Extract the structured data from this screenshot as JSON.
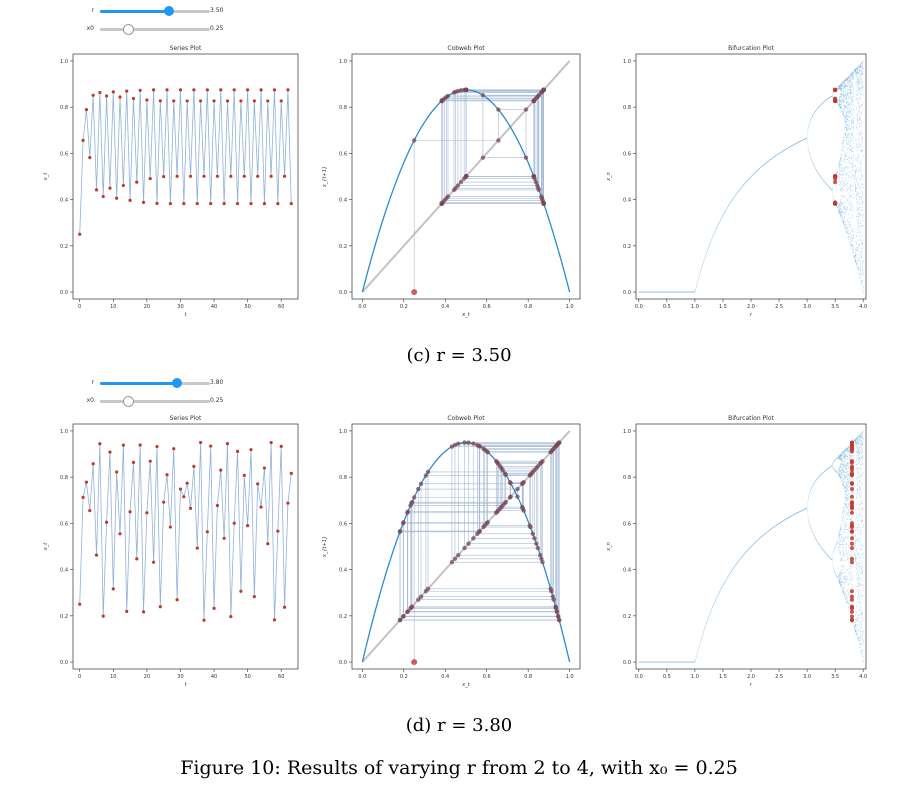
{
  "panels": [
    {
      "id": "c",
      "r": 3.5,
      "sliders": [
        {
          "label": "r",
          "value_text": "3.50",
          "fraction": 0.625
        },
        {
          "label": "x0",
          "value_text": "0.25",
          "fraction": 0.25
        }
      ],
      "caption": "(c) r = 3.50",
      "chart_data": [
        {
          "type": "line",
          "title": "Series Plot",
          "xlabel": "t",
          "ylabel": "x_t",
          "xlim": [
            -2,
            65
          ],
          "ylim": [
            -0.03,
            1.03
          ],
          "xticks": [
            0,
            10,
            20,
            30,
            40,
            50,
            60
          ],
          "yticks": [
            0.0,
            0.2,
            0.4,
            0.6,
            0.8,
            1.0
          ],
          "series": [
            {
              "x": "t = 0..63",
              "values": "x_{t+1} = r·x_t·(1−x_t), x_0 = 0.25"
            }
          ]
        },
        {
          "type": "line",
          "title": "Cobweb Plot",
          "xlabel": "x_t",
          "ylabel": "x_{t+1}",
          "xlim": [
            -0.05,
            1.05
          ],
          "ylim": [
            -0.03,
            1.03
          ],
          "xticks": [
            0.0,
            0.2,
            0.4,
            0.6,
            0.8,
            1.0
          ],
          "yticks": [
            0.0,
            0.2,
            0.4,
            0.6,
            0.8,
            1.0
          ]
        },
        {
          "type": "scatter",
          "title": "Bifurcation Plot",
          "xlabel": "r",
          "ylabel": "x_n",
          "xlim": [
            -0.05,
            4.05
          ],
          "ylim": [
            -0.03,
            1.03
          ],
          "xticks": [
            0.0,
            0.5,
            1.0,
            1.5,
            2.0,
            2.5,
            3.0,
            3.5,
            4.0
          ],
          "yticks": [
            0.0,
            0.2,
            0.4,
            0.6,
            0.8,
            1.0
          ]
        }
      ]
    },
    {
      "id": "d",
      "r": 3.8,
      "sliders": [
        {
          "label": "r",
          "value_text": "3.80",
          "fraction": 0.7
        },
        {
          "label": "x0",
          "value_text": "0.25",
          "fraction": 0.25
        }
      ],
      "caption": "(d) r = 3.80",
      "chart_data": [
        {
          "type": "line",
          "title": "Series Plot",
          "xlabel": "t",
          "ylabel": "x_t",
          "xlim": [
            -2,
            65
          ],
          "ylim": [
            -0.03,
            1.03
          ],
          "xticks": [
            0,
            10,
            20,
            30,
            40,
            50,
            60
          ],
          "yticks": [
            0.0,
            0.2,
            0.4,
            0.6,
            0.8,
            1.0
          ]
        },
        {
          "type": "line",
          "title": "Cobweb Plot",
          "xlabel": "x_t",
          "ylabel": "x_{t+1}",
          "xlim": [
            -0.05,
            1.05
          ],
          "ylim": [
            -0.03,
            1.03
          ],
          "xticks": [
            0.0,
            0.2,
            0.4,
            0.6,
            0.8,
            1.0
          ],
          "yticks": [
            0.0,
            0.2,
            0.4,
            0.6,
            0.8,
            1.0
          ]
        },
        {
          "type": "scatter",
          "title": "Bifurcation Plot",
          "xlabel": "r",
          "ylabel": "x_n",
          "xlim": [
            -0.05,
            4.05
          ],
          "ylim": [
            -0.03,
            1.03
          ],
          "xticks": [
            0.0,
            0.5,
            1.0,
            1.5,
            2.0,
            2.5,
            3.0,
            3.5,
            4.0
          ],
          "yticks": [
            0.0,
            0.2,
            0.4,
            0.6,
            0.8,
            1.0
          ]
        }
      ]
    }
  ],
  "x0": 0.25,
  "n_steps": 64,
  "figure_caption": "Figure 10: Results of varying r from 2 to 4, with x₀ = 0.25",
  "colors": {
    "line": "#2b8cd0",
    "series_line": "#8fb3d9",
    "marker": "#c0392b",
    "diag": "#aaaaaa",
    "cobweb": "#8fa9c9"
  }
}
